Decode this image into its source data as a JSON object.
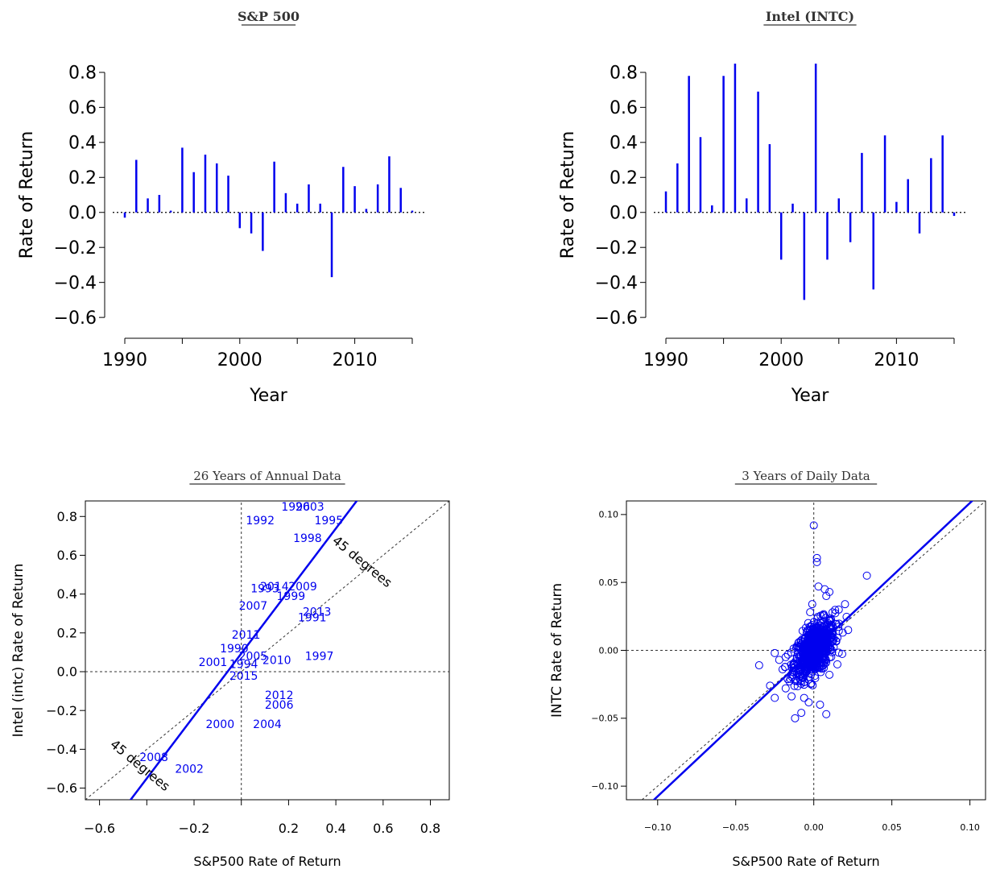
{
  "colors": {
    "series": "#0000ee",
    "axis": "#000000",
    "reference": "#000000"
  },
  "chart_data": [
    {
      "type": "bar",
      "title": "S&P 500",
      "xlabel": "Year",
      "ylabel": "Rate of Return",
      "xlim": [
        1989.3,
        1015.7
      ],
      "ylim": [
        -0.65,
        0.85
      ],
      "xticks": [
        1990,
        2000,
        2010
      ],
      "yticks": [
        -0.6,
        -0.4,
        -0.2,
        0.0,
        0.2,
        0.4,
        0.6,
        0.8
      ],
      "ytick_labels": [
        "−0.6",
        "−0.4",
        "−0.2",
        "0.0",
        "0.2",
        "0.4",
        "0.6",
        "0.8"
      ],
      "x": [
        1990,
        1991,
        1992,
        1993,
        1994,
        1995,
        1996,
        1997,
        1998,
        1999,
        2000,
        2001,
        2002,
        2003,
        2004,
        2005,
        2006,
        2007,
        2008,
        2009,
        2010,
        2011,
        2012,
        2013,
        2014,
        2015
      ],
      "values": [
        -0.03,
        0.3,
        0.08,
        0.1,
        0.01,
        0.37,
        0.23,
        0.33,
        0.28,
        0.21,
        -0.09,
        -0.12,
        -0.22,
        0.29,
        0.11,
        0.05,
        0.16,
        0.05,
        -0.37,
        0.26,
        0.15,
        0.02,
        0.16,
        0.32,
        0.14,
        0.01
      ]
    },
    {
      "type": "bar",
      "title": "Intel (INTC)",
      "xlabel": "Year",
      "ylabel": "Rate of Return",
      "xlim": [
        1989.3,
        2015.7
      ],
      "ylim": [
        -0.65,
        0.85
      ],
      "xticks": [
        1990,
        2000,
        2010
      ],
      "yticks": [
        -0.6,
        -0.4,
        -0.2,
        0.0,
        0.2,
        0.4,
        0.6,
        0.8
      ],
      "ytick_labels": [
        "−0.6",
        "−0.4",
        "−0.2",
        "0.0",
        "0.2",
        "0.4",
        "0.6",
        "0.8"
      ],
      "x": [
        1990,
        1991,
        1992,
        1993,
        1994,
        1995,
        1996,
        1997,
        1998,
        1999,
        2000,
        2001,
        2002,
        2003,
        2004,
        2005,
        2006,
        2007,
        2008,
        2009,
        2010,
        2011,
        2012,
        2013,
        2014,
        2015
      ],
      "values": [
        0.12,
        0.28,
        0.78,
        0.43,
        0.04,
        0.78,
        0.85,
        0.08,
        0.69,
        0.39,
        -0.27,
        0.05,
        -0.5,
        0.85,
        -0.27,
        0.08,
        -0.17,
        0.34,
        -0.44,
        0.44,
        0.06,
        0.19,
        -0.12,
        0.31,
        0.44,
        -0.02
      ]
    },
    {
      "type": "scatter",
      "title": "26 Years of Annual Data",
      "xlabel": "S&P500 Rate of Return",
      "ylabel": "Intel (intc) Rate of Return",
      "xlim": [
        -0.66,
        0.88
      ],
      "ylim": [
        -0.66,
        0.88
      ],
      "xticks": [
        -0.6,
        -0.2,
        0.2,
        0.4,
        0.6,
        0.8
      ],
      "xtick_labels": [
        "−0.6",
        "−0.2",
        "0.2",
        "0.4",
        "0.6",
        "0.8"
      ],
      "yticks": [
        -0.6,
        -0.4,
        -0.2,
        0.0,
        0.2,
        0.4,
        0.6,
        0.8
      ],
      "ytick_labels": [
        "−0.6",
        "−0.4",
        "−0.2",
        "0.0",
        "0.2",
        "0.4",
        "0.6",
        "0.8"
      ],
      "reference_label": "45 degrees",
      "fit_line": {
        "intercept": 0.094,
        "slope": 1.61
      },
      "points": [
        {
          "label": "1990",
          "x": -0.03,
          "y": 0.12
        },
        {
          "label": "1991",
          "x": 0.3,
          "y": 0.28
        },
        {
          "label": "1992",
          "x": 0.08,
          "y": 0.78
        },
        {
          "label": "1993",
          "x": 0.1,
          "y": 0.43
        },
        {
          "label": "1994",
          "x": 0.01,
          "y": 0.04
        },
        {
          "label": "1995",
          "x": 0.37,
          "y": 0.78
        },
        {
          "label": "1996",
          "x": 0.23,
          "y": 0.85
        },
        {
          "label": "1997",
          "x": 0.33,
          "y": 0.08
        },
        {
          "label": "1998",
          "x": 0.28,
          "y": 0.69
        },
        {
          "label": "1999",
          "x": 0.21,
          "y": 0.39
        },
        {
          "label": "2000",
          "x": -0.09,
          "y": -0.27
        },
        {
          "label": "2001",
          "x": -0.12,
          "y": 0.05
        },
        {
          "label": "2002",
          "x": -0.22,
          "y": -0.5
        },
        {
          "label": "2003",
          "x": 0.29,
          "y": 0.85
        },
        {
          "label": "2004",
          "x": 0.11,
          "y": -0.27
        },
        {
          "label": "2005",
          "x": 0.05,
          "y": 0.08
        },
        {
          "label": "2006",
          "x": 0.16,
          "y": -0.17
        },
        {
          "label": "2007",
          "x": 0.05,
          "y": 0.34
        },
        {
          "label": "2008",
          "x": -0.37,
          "y": -0.44
        },
        {
          "label": "2009",
          "x": 0.26,
          "y": 0.44
        },
        {
          "label": "2010",
          "x": 0.15,
          "y": 0.06
        },
        {
          "label": "2011",
          "x": 0.02,
          "y": 0.19
        },
        {
          "label": "2012",
          "x": 0.16,
          "y": -0.12
        },
        {
          "label": "2013",
          "x": 0.32,
          "y": 0.31
        },
        {
          "label": "2014",
          "x": 0.14,
          "y": 0.44
        },
        {
          "label": "2015",
          "x": 0.01,
          "y": -0.02
        }
      ]
    },
    {
      "type": "scatter",
      "title": "3 Years of Daily Data",
      "xlabel": "S&P500 Rate of Return",
      "ylabel": "INTC Rate of Return",
      "xlim": [
        -0.12,
        0.11
      ],
      "ylim": [
        -0.11,
        0.11
      ],
      "xticks": [
        -0.1,
        -0.05,
        0.0,
        0.05,
        0.1
      ],
      "xtick_labels": [
        "−0.10",
        "−0.05",
        "0.00",
        "0.05",
        "0.10"
      ],
      "yticks": [
        -0.1,
        -0.05,
        0.0,
        0.05,
        0.1
      ],
      "ytick_labels": [
        "−0.10",
        "−0.05",
        "0.00",
        "0.05",
        "0.10"
      ],
      "fit_line": {
        "intercept": 0.0005,
        "slope": 1.08
      },
      "points": [
        {
          "x": 0.0,
          "y": 0.092
        },
        {
          "x": 0.002,
          "y": 0.068
        },
        {
          "x": 0.002,
          "y": 0.065
        },
        {
          "x": 0.003,
          "y": 0.047
        },
        {
          "x": 0.007,
          "y": 0.045
        },
        {
          "x": 0.008,
          "y": 0.04
        },
        {
          "x": 0.034,
          "y": 0.055
        },
        {
          "x": -0.001,
          "y": 0.034
        },
        {
          "x": 0.01,
          "y": 0.043
        },
        {
          "x": -0.035,
          "y": -0.011
        },
        {
          "x": -0.025,
          "y": -0.002
        },
        {
          "x": -0.028,
          "y": -0.026
        },
        {
          "x": -0.025,
          "y": -0.035
        },
        {
          "x": -0.012,
          "y": -0.05
        },
        {
          "x": -0.008,
          "y": -0.046
        },
        {
          "x": 0.008,
          "y": -0.047
        },
        {
          "x": 0.004,
          "y": -0.04
        },
        {
          "x": 0.02,
          "y": 0.034
        },
        {
          "x": 0.016,
          "y": 0.03
        },
        {
          "x": 0.022,
          "y": 0.015
        },
        {
          "x": 0.012,
          "y": 0.028
        },
        {
          "x": 0.01,
          "y": -0.018
        },
        {
          "x": -0.018,
          "y": -0.028
        },
        {
          "x": -0.015,
          "y": -0.021
        },
        {
          "x": -0.02,
          "y": -0.014
        }
      ],
      "cluster": {
        "count": 720,
        "sd_x": 0.0065,
        "corr": 0.6,
        "sd_resid": 0.009
      }
    }
  ]
}
